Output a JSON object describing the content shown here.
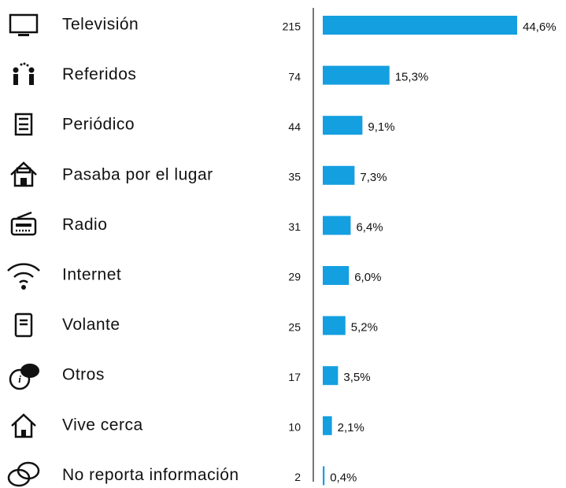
{
  "chart_data": {
    "type": "bar",
    "categories": [
      "Televisión",
      "Referidos",
      "Periódico",
      "Pasaba por el lugar",
      "Radio",
      "Internet",
      "Volante",
      "Otros",
      "Vive cerca",
      "No reporta información"
    ],
    "counts": [
      215,
      74,
      44,
      35,
      31,
      29,
      25,
      17,
      10,
      2
    ],
    "values": [
      44.6,
      15.3,
      9.1,
      7.3,
      6.4,
      6.0,
      5.2,
      3.5,
      2.1,
      0.4
    ],
    "value_labels": [
      "44,6%",
      "15,3%",
      "9,1%",
      "7,3%",
      "6,4%",
      "6,0%",
      "5,2%",
      "3,5%",
      "2,1%",
      "0,4%"
    ],
    "color": "#149fe0"
  }
}
